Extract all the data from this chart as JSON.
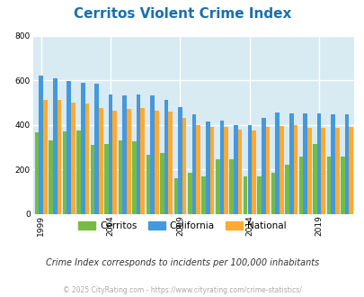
{
  "title": "Cerritos Violent Crime Index",
  "title_color": "#1a6faf",
  "subtitle": "Crime Index corresponds to incidents per 100,000 inhabitants",
  "footer": "© 2025 CityRating.com - https://www.cityrating.com/crime-statistics/",
  "years": [
    1999,
    2000,
    2001,
    2002,
    2003,
    2004,
    2005,
    2006,
    2007,
    2008,
    2009,
    2010,
    2011,
    2012,
    2013,
    2014,
    2015,
    2016,
    2017,
    2018,
    2019,
    2020,
    2021
  ],
  "cerritos": [
    365,
    330,
    370,
    375,
    310,
    315,
    330,
    325,
    265,
    275,
    160,
    183,
    170,
    243,
    245,
    168,
    170,
    183,
    220,
    255,
    315,
    255,
    255
  ],
  "california": [
    620,
    610,
    595,
    590,
    585,
    535,
    530,
    535,
    530,
    510,
    480,
    445,
    415,
    420,
    400,
    398,
    430,
    455,
    450,
    450,
    450,
    445,
    445
  ],
  "national": [
    510,
    510,
    500,
    495,
    475,
    465,
    470,
    475,
    465,
    460,
    430,
    400,
    390,
    390,
    380,
    375,
    390,
    395,
    400,
    385,
    385,
    385,
    390
  ],
  "bar_colors": {
    "cerritos": "#77bb44",
    "california": "#4499dd",
    "national": "#ffaa33"
  },
  "ylim": [
    0,
    800
  ],
  "yticks": [
    0,
    200,
    400,
    600,
    800
  ],
  "grid_color": "#ffffff",
  "axis_bg": "#d8eaf2",
  "fig_bg": "#ffffff",
  "title_fontsize": 11,
  "labeled_years": [
    1999,
    2004,
    2009,
    2014,
    2019
  ]
}
